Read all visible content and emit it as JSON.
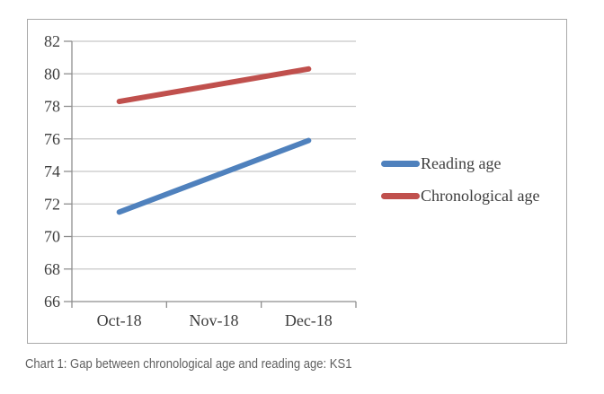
{
  "caption": "Chart 1: Gap between chronological age and reading age: KS1",
  "colors": {
    "reading_age": "#4F81BD",
    "chronological_age": "#C0504D",
    "gridline": "#c6c6c6",
    "axis": "#8e8e8e",
    "tick_text": "#3d3d3d",
    "frame_border": "#a9a9a9",
    "caption_text": "#5f5f5f"
  },
  "chart_data": {
    "type": "line",
    "categories": [
      "Oct-18",
      "Nov-18",
      "Dec-18"
    ],
    "series": [
      {
        "name": "Reading age",
        "color": "#4F81BD",
        "values": [
          71.5,
          73.7,
          75.9
        ]
      },
      {
        "name": "Chronological age",
        "color": "#C0504D",
        "values": [
          78.3,
          79.3,
          80.3
        ]
      }
    ],
    "title": "",
    "xlabel": "",
    "ylabel": "",
    "ylim": [
      66,
      82
    ],
    "ytick_step": 2,
    "grid": true,
    "legend_position": "right"
  }
}
